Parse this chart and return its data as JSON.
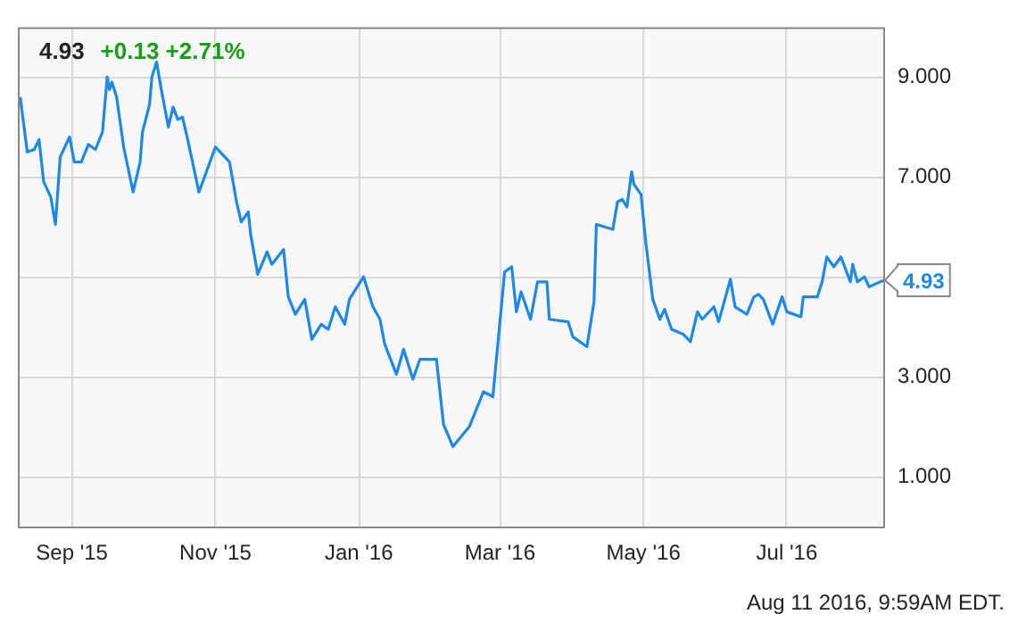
{
  "chart_data": {
    "type": "line",
    "title": "4.93",
    "subtitle": "+0.13 +2.71%",
    "annotations": [
      {
        "text": "4.93",
        "x": "2016-08-11",
        "y": 4.93
      },
      "Aug 11 2016, 9:59AM EDT."
    ],
    "x": [
      "2015-08-10",
      "2015-08-13",
      "2015-08-16",
      "2015-08-18",
      "2015-08-20",
      "2015-08-23",
      "2015-08-25",
      "2015-08-27",
      "2015-08-31",
      "2015-09-02",
      "2015-09-05",
      "2015-09-08",
      "2015-09-11",
      "2015-09-14",
      "2015-09-16",
      "2015-09-17",
      "2015-09-18",
      "2015-09-20",
      "2015-09-23",
      "2015-09-27",
      "2015-09-30",
      "2015-10-01",
      "2015-10-04",
      "2015-10-05",
      "2015-10-07",
      "2015-10-09",
      "2015-10-12",
      "2015-10-14",
      "2015-10-16",
      "2015-10-18",
      "2015-10-20",
      "2015-10-25",
      "2015-10-27",
      "2015-11-01",
      "2015-11-07",
      "2015-11-10",
      "2015-11-12",
      "2015-11-15",
      "2015-11-16",
      "2015-11-19",
      "2015-11-23",
      "2015-11-25",
      "2015-11-30",
      "2015-12-02",
      "2015-12-05",
      "2015-12-09",
      "2015-12-12",
      "2015-12-16",
      "2015-12-19",
      "2015-12-22",
      "2015-12-26",
      "2015-12-28",
      "2016-01-03",
      "2016-01-07",
      "2016-01-10",
      "2016-01-12",
      "2016-01-17",
      "2016-01-20",
      "2016-01-24",
      "2016-01-27",
      "2016-02-03",
      "2016-02-06",
      "2016-02-10",
      "2016-02-17",
      "2016-02-20",
      "2016-02-23",
      "2016-02-27",
      "2016-03-03",
      "2016-03-06",
      "2016-03-08",
      "2016-03-10",
      "2016-03-14",
      "2016-03-17",
      "2016-03-21",
      "2016-03-22",
      "2016-03-30",
      "2016-04-01",
      "2016-04-07",
      "2016-04-10",
      "2016-04-11",
      "2016-04-18",
      "2016-04-20",
      "2016-04-22",
      "2016-04-24",
      "2016-04-26",
      "2016-04-27",
      "2016-04-30",
      "2016-05-02",
      "2016-05-05",
      "2016-05-08",
      "2016-05-10",
      "2016-05-13",
      "2016-05-18",
      "2016-05-21",
      "2016-05-24",
      "2016-05-26",
      "2016-05-31",
      "2016-06-02",
      "2016-06-07",
      "2016-06-09",
      "2016-06-14",
      "2016-06-17",
      "2016-06-19",
      "2016-06-21",
      "2016-06-25",
      "2016-06-29",
      "2016-07-01",
      "2016-07-07",
      "2016-07-08",
      "2016-07-14",
      "2016-07-16",
      "2016-07-18",
      "2016-07-21",
      "2016-07-24",
      "2016-07-28",
      "2016-07-29",
      "2016-07-31",
      "2016-08-03",
      "2016-08-05",
      "2016-08-11"
    ],
    "series": [
      {
        "color": "#1e88e5",
        "values": [
          8.6,
          7.5,
          7.55,
          7.75,
          6.9,
          6.6,
          6.05,
          7.4,
          7.8,
          7.3,
          7.3,
          7.65,
          7.55,
          7.9,
          9.0,
          8.75,
          8.9,
          8.6,
          7.6,
          6.7,
          7.3,
          7.9,
          8.45,
          9.0,
          9.3,
          8.75,
          8.0,
          8.4,
          8.15,
          8.2,
          7.8,
          6.7,
          6.95,
          7.6,
          7.3,
          6.5,
          6.1,
          6.3,
          5.85,
          5.05,
          5.5,
          5.25,
          5.55,
          4.6,
          4.25,
          4.55,
          3.75,
          4.05,
          3.95,
          4.4,
          4.05,
          4.55,
          5.0,
          4.4,
          4.15,
          3.65,
          3.05,
          3.55,
          2.95,
          3.35,
          3.35,
          2.05,
          1.6,
          2.0,
          2.35,
          2.7,
          2.6,
          5.1,
          5.2,
          4.3,
          4.7,
          4.15,
          4.9,
          4.9,
          4.15,
          4.1,
          3.8,
          3.6,
          4.5,
          6.05,
          5.95,
          6.5,
          6.55,
          6.4,
          7.1,
          6.85,
          6.65,
          5.7,
          4.55,
          4.15,
          4.35,
          3.95,
          3.85,
          3.7,
          4.3,
          4.15,
          4.4,
          4.1,
          4.95,
          4.4,
          4.25,
          4.6,
          4.65,
          4.55,
          4.05,
          4.6,
          4.3,
          4.2,
          4.6,
          4.6,
          4.9,
          5.4,
          5.2,
          5.4,
          4.9,
          5.25,
          4.9,
          5.0,
          4.8,
          4.93
        ]
      }
    ],
    "xlim": [
      "2015-08-09",
      "2016-08-11"
    ],
    "xticks": [
      {
        "value": "2015-09-01",
        "label": "Sep '15"
      },
      {
        "value": "2015-11-01",
        "label": "Nov '15"
      },
      {
        "value": "2016-01-01",
        "label": "Jan '16"
      },
      {
        "value": "2016-03-01",
        "label": "Mar '16"
      },
      {
        "value": "2016-05-01",
        "label": "May '16"
      },
      {
        "value": "2016-07-01",
        "label": "Jul '16"
      }
    ],
    "ylim": [
      0,
      10
    ],
    "yticks": [
      {
        "value": 1,
        "label": "1.000"
      },
      {
        "value": 3,
        "label": "3.000"
      },
      {
        "value": 5,
        "label": null
      },
      {
        "value": 7,
        "label": "7.000"
      },
      {
        "value": 9,
        "label": "9.000"
      }
    ],
    "grid": true,
    "legend": false,
    "marker": "none",
    "line_style": "solid"
  }
}
